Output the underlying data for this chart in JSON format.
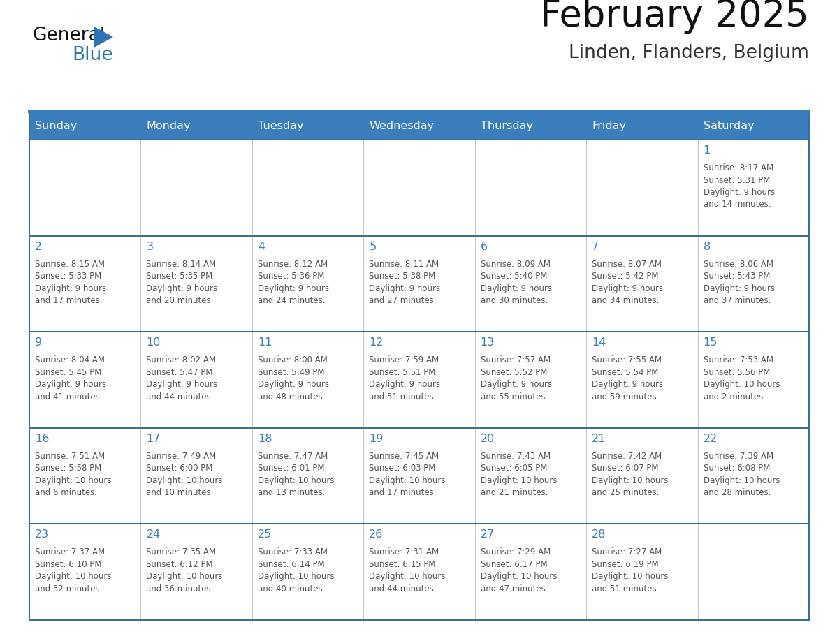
{
  "title": "February 2025",
  "subtitle": "Linden, Flanders, Belgium",
  "days_of_week": [
    "Sunday",
    "Monday",
    "Tuesday",
    "Wednesday",
    "Thursday",
    "Friday",
    "Saturday"
  ],
  "header_bg": "#3A7EBD",
  "header_text": "#FFFFFF",
  "grid_line_color": "#3A6E9E",
  "vert_line_color": "#C8C8C8",
  "day_num_color": "#3A7EBD",
  "text_color": "#555555",
  "title_color": "#111111",
  "subtitle_color": "#333333",
  "logo_general_color": "#111111",
  "logo_blue_color": "#2E75B6",
  "triangle_color": "#2E75B6",
  "top_bar_color": "#3A7EBD",
  "weeks": [
    [
      {
        "day": null,
        "info": null
      },
      {
        "day": null,
        "info": null
      },
      {
        "day": null,
        "info": null
      },
      {
        "day": null,
        "info": null
      },
      {
        "day": null,
        "info": null
      },
      {
        "day": null,
        "info": null
      },
      {
        "day": 1,
        "info": "Sunrise: 8:17 AM\nSunset: 5:31 PM\nDaylight: 9 hours\nand 14 minutes."
      }
    ],
    [
      {
        "day": 2,
        "info": "Sunrise: 8:15 AM\nSunset: 5:33 PM\nDaylight: 9 hours\nand 17 minutes."
      },
      {
        "day": 3,
        "info": "Sunrise: 8:14 AM\nSunset: 5:35 PM\nDaylight: 9 hours\nand 20 minutes."
      },
      {
        "day": 4,
        "info": "Sunrise: 8:12 AM\nSunset: 5:36 PM\nDaylight: 9 hours\nand 24 minutes."
      },
      {
        "day": 5,
        "info": "Sunrise: 8:11 AM\nSunset: 5:38 PM\nDaylight: 9 hours\nand 27 minutes."
      },
      {
        "day": 6,
        "info": "Sunrise: 8:09 AM\nSunset: 5:40 PM\nDaylight: 9 hours\nand 30 minutes."
      },
      {
        "day": 7,
        "info": "Sunrise: 8:07 AM\nSunset: 5:42 PM\nDaylight: 9 hours\nand 34 minutes."
      },
      {
        "day": 8,
        "info": "Sunrise: 8:06 AM\nSunset: 5:43 PM\nDaylight: 9 hours\nand 37 minutes."
      }
    ],
    [
      {
        "day": 9,
        "info": "Sunrise: 8:04 AM\nSunset: 5:45 PM\nDaylight: 9 hours\nand 41 minutes."
      },
      {
        "day": 10,
        "info": "Sunrise: 8:02 AM\nSunset: 5:47 PM\nDaylight: 9 hours\nand 44 minutes."
      },
      {
        "day": 11,
        "info": "Sunrise: 8:00 AM\nSunset: 5:49 PM\nDaylight: 9 hours\nand 48 minutes."
      },
      {
        "day": 12,
        "info": "Sunrise: 7:59 AM\nSunset: 5:51 PM\nDaylight: 9 hours\nand 51 minutes."
      },
      {
        "day": 13,
        "info": "Sunrise: 7:57 AM\nSunset: 5:52 PM\nDaylight: 9 hours\nand 55 minutes."
      },
      {
        "day": 14,
        "info": "Sunrise: 7:55 AM\nSunset: 5:54 PM\nDaylight: 9 hours\nand 59 minutes."
      },
      {
        "day": 15,
        "info": "Sunrise: 7:53 AM\nSunset: 5:56 PM\nDaylight: 10 hours\nand 2 minutes."
      }
    ],
    [
      {
        "day": 16,
        "info": "Sunrise: 7:51 AM\nSunset: 5:58 PM\nDaylight: 10 hours\nand 6 minutes."
      },
      {
        "day": 17,
        "info": "Sunrise: 7:49 AM\nSunset: 6:00 PM\nDaylight: 10 hours\nand 10 minutes."
      },
      {
        "day": 18,
        "info": "Sunrise: 7:47 AM\nSunset: 6:01 PM\nDaylight: 10 hours\nand 13 minutes."
      },
      {
        "day": 19,
        "info": "Sunrise: 7:45 AM\nSunset: 6:03 PM\nDaylight: 10 hours\nand 17 minutes."
      },
      {
        "day": 20,
        "info": "Sunrise: 7:43 AM\nSunset: 6:05 PM\nDaylight: 10 hours\nand 21 minutes."
      },
      {
        "day": 21,
        "info": "Sunrise: 7:42 AM\nSunset: 6:07 PM\nDaylight: 10 hours\nand 25 minutes."
      },
      {
        "day": 22,
        "info": "Sunrise: 7:39 AM\nSunset: 6:08 PM\nDaylight: 10 hours\nand 28 minutes."
      }
    ],
    [
      {
        "day": 23,
        "info": "Sunrise: 7:37 AM\nSunset: 6:10 PM\nDaylight: 10 hours\nand 32 minutes."
      },
      {
        "day": 24,
        "info": "Sunrise: 7:35 AM\nSunset: 6:12 PM\nDaylight: 10 hours\nand 36 minutes."
      },
      {
        "day": 25,
        "info": "Sunrise: 7:33 AM\nSunset: 6:14 PM\nDaylight: 10 hours\nand 40 minutes."
      },
      {
        "day": 26,
        "info": "Sunrise: 7:31 AM\nSunset: 6:15 PM\nDaylight: 10 hours\nand 44 minutes."
      },
      {
        "day": 27,
        "info": "Sunrise: 7:29 AM\nSunset: 6:17 PM\nDaylight: 10 hours\nand 47 minutes."
      },
      {
        "day": 28,
        "info": "Sunrise: 7:27 AM\nSunset: 6:19 PM\nDaylight: 10 hours\nand 51 minutes."
      },
      {
        "day": null,
        "info": null
      }
    ]
  ]
}
